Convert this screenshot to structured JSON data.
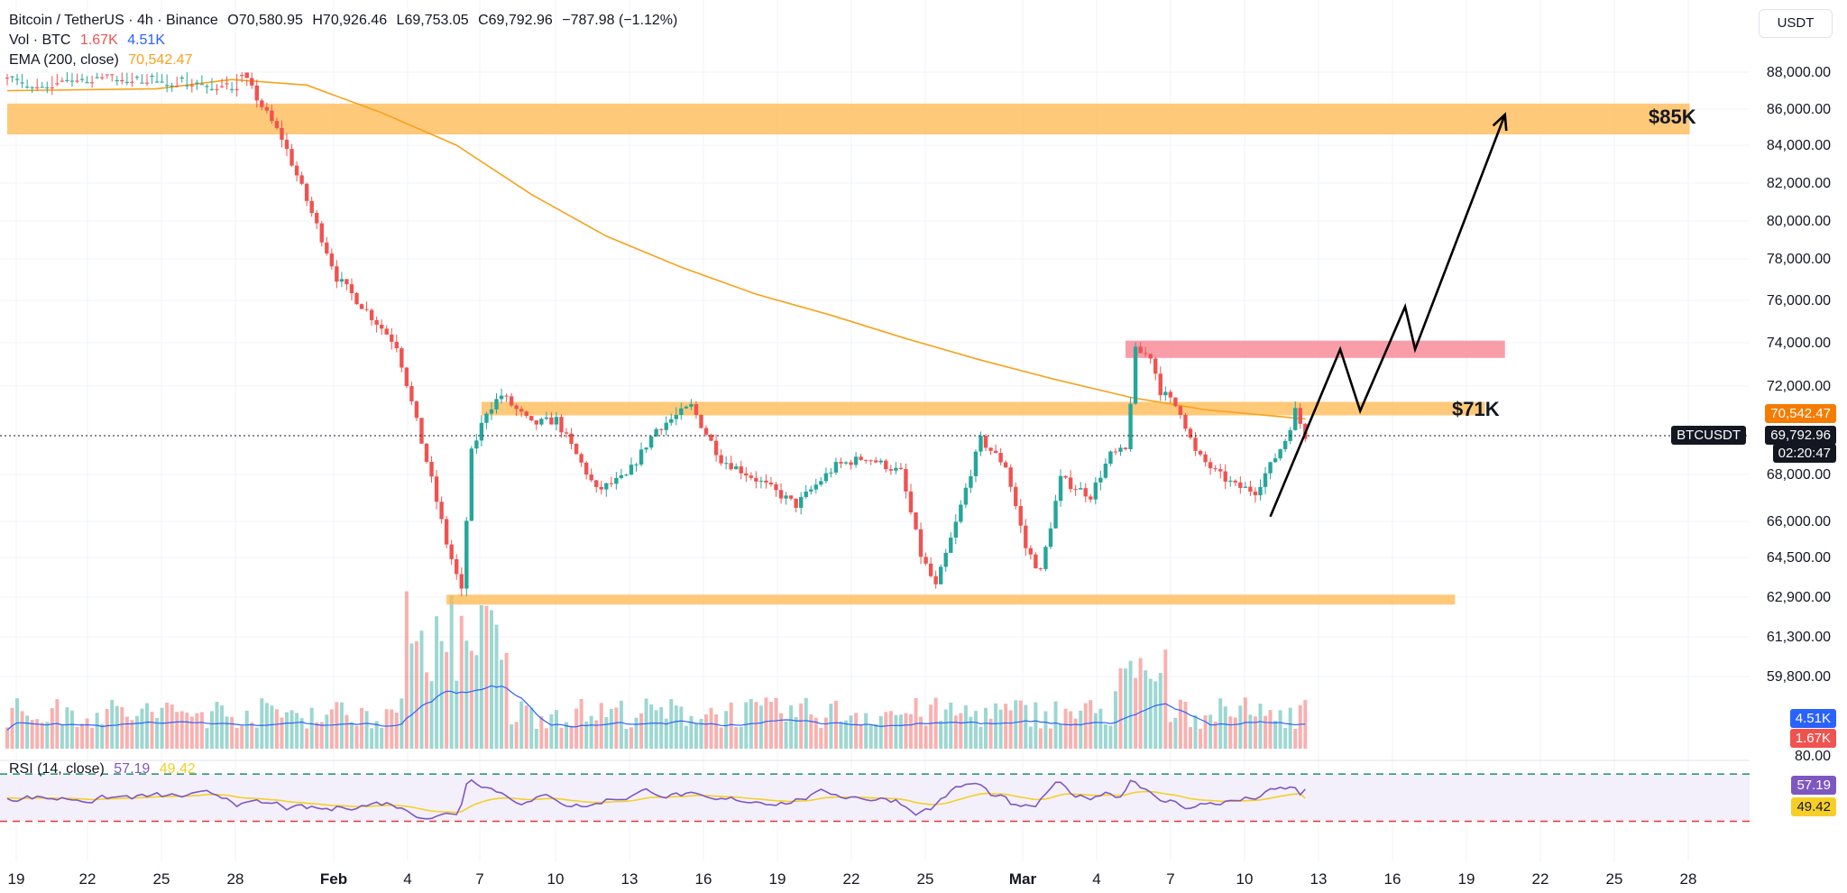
{
  "header": {
    "symbol": "Bitcoin / TetherUS · 4h · Binance",
    "open": "O70,580.95",
    "high": "H70,926.46",
    "low": "L69,753.05",
    "close": "C69,792.96",
    "change": "−787.98 (−1.12%)",
    "vol_label": "Vol · BTC",
    "vol_a": "1.67K",
    "vol_b": "4.51K",
    "ema_label": "EMA (200, close)",
    "ema_value": "70,542.47"
  },
  "currency_button": "USDT",
  "price_tags": {
    "ema": "70,542.47",
    "symbol": "BTCUSDT",
    "last": "69,792.96",
    "countdown": "02:20:47",
    "vol_b": "4.51K",
    "vol_a": "1.67K",
    "rsi": "57.19",
    "rsi_ma": "49.42"
  },
  "annotations": {
    "level_high": "$85K",
    "level_mid": "$71K"
  },
  "rsi_legend": {
    "label": "RSI (14, close)",
    "rsi": "57.19",
    "ma": "49.42"
  },
  "colors": {
    "up": "#26a69a",
    "down": "#ef5350",
    "ema": "#f7a21b",
    "zone": "#ffb74d",
    "resistance": "#f77c8c",
    "vol_ma": "#2962ff",
    "rsi": "#7e57c2",
    "rsi_ma": "#f5cf27"
  },
  "chart_data": {
    "type": "candlestick",
    "title": "Bitcoin / TetherUS · 4h · Binance",
    "y_axis": {
      "ticks": [
        "88,000.00",
        "86,000.00",
        "84,000.00",
        "82,000.00",
        "80,000.00",
        "78,000.00",
        "76,000.00",
        "74,000.00",
        "72,000.00",
        "68,000.00",
        "66,000.00",
        "64,500.00",
        "62,900.00",
        "61,300.00",
        "59,800.00",
        "80.00"
      ],
      "tick_values": [
        88000,
        86000,
        84000,
        82000,
        80000,
        78000,
        76000,
        74000,
        72000,
        68000,
        66000,
        64500,
        62900,
        61300,
        59800
      ],
      "scale": "log"
    },
    "x_axis": {
      "labels": [
        "19",
        "22",
        "25",
        "28",
        "Feb",
        "4",
        "7",
        "10",
        "13",
        "16",
        "19",
        "22",
        "25",
        "Mar",
        "4",
        "7",
        "10",
        "13",
        "16",
        "19",
        "22",
        "25",
        "28"
      ]
    },
    "key_path": [
      [
        0,
        88300
      ],
      [
        5,
        88700
      ],
      [
        20,
        88200
      ],
      [
        45,
        88800
      ],
      [
        55,
        84400
      ],
      [
        66,
        77100
      ],
      [
        78,
        73900
      ],
      [
        88,
        65100
      ],
      [
        91,
        63100
      ],
      [
        93,
        69000
      ],
      [
        96,
        70900
      ],
      [
        99,
        71600
      ],
      [
        105,
        70300
      ],
      [
        110,
        70500
      ],
      [
        118,
        67300
      ],
      [
        124,
        67900
      ],
      [
        130,
        70100
      ],
      [
        137,
        71100
      ],
      [
        143,
        68700
      ],
      [
        150,
        67800
      ],
      [
        158,
        66700
      ],
      [
        166,
        68400
      ],
      [
        172,
        68800
      ],
      [
        179,
        68100
      ],
      [
        183,
        64600
      ],
      [
        186,
        63300
      ],
      [
        190,
        65900
      ],
      [
        195,
        69600
      ],
      [
        200,
        68400
      ],
      [
        204,
        64900
      ],
      [
        207,
        63900
      ],
      [
        211,
        67800
      ],
      [
        217,
        67100
      ],
      [
        221,
        68900
      ],
      [
        224,
        69100
      ],
      [
        226,
        73600
      ],
      [
        229,
        73400
      ],
      [
        231,
        71800
      ],
      [
        235,
        70900
      ],
      [
        238,
        69000
      ],
      [
        242,
        68100
      ],
      [
        246,
        67500
      ],
      [
        250,
        67300
      ],
      [
        253,
        68400
      ],
      [
        256,
        69600
      ],
      [
        258,
        70900
      ],
      [
        260,
        69800
      ]
    ],
    "ema_200": [
      [
        0,
        89000
      ],
      [
        30,
        88900
      ],
      [
        45,
        88400
      ],
      [
        60,
        87300
      ],
      [
        75,
        85800
      ],
      [
        90,
        84000
      ],
      [
        105,
        81400
      ],
      [
        120,
        79200
      ],
      [
        135,
        77600
      ],
      [
        150,
        76300
      ],
      [
        165,
        75300
      ],
      [
        180,
        74200
      ],
      [
        195,
        73200
      ],
      [
        210,
        72300
      ],
      [
        225,
        71500
      ],
      [
        240,
        70950
      ],
      [
        260,
        70542.47
      ]
    ],
    "zones": [
      {
        "name": "$85K",
        "low": 84600,
        "high": 86300,
        "from": 0,
        "to": 337
      },
      {
        "name": "$71K",
        "low": 70700,
        "high": 71300,
        "from": 95,
        "to": 296
      },
      {
        "name": "",
        "low": 62600,
        "high": 63000,
        "from": 88,
        "to": 290
      },
      {
        "name": "",
        "low": 73300,
        "high": 74100,
        "from": 224,
        "to": 300
      }
    ],
    "projection": [
      [
        253,
        66200
      ],
      [
        267,
        73700
      ],
      [
        271,
        70900
      ],
      [
        280,
        75700
      ],
      [
        282,
        73700
      ],
      [
        300,
        85700
      ]
    ],
    "last_price": 69792.96,
    "ema_value": 70542.47,
    "rsi": {
      "label": "RSI (14, close)",
      "last": 57.19,
      "ma_last": 49.42,
      "upper": 70,
      "lower": 30
    },
    "volume": {
      "last_ma": 4.51,
      "last": 1.67,
      "units": "K"
    }
  }
}
